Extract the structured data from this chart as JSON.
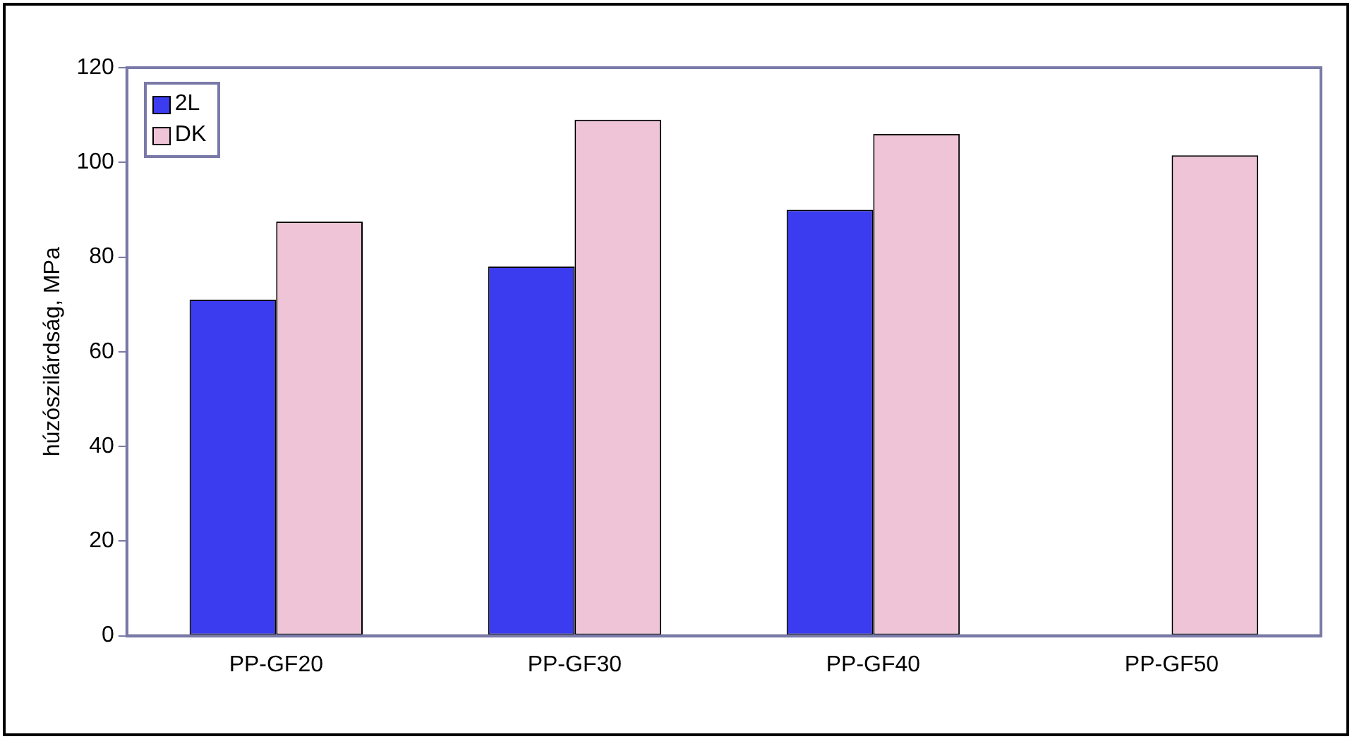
{
  "chart_data": {
    "type": "bar",
    "ylabel": "húzószilárdság, MPa",
    "categories": [
      "PP-GF20",
      "PP-GF30",
      "PP-GF40",
      "PP-GF50"
    ],
    "series": [
      {
        "name": "2L",
        "color": "#3b3bf0",
        "values": [
          71,
          78,
          90,
          null
        ]
      },
      {
        "name": "DK",
        "color": "#eec4d6",
        "values": [
          87.5,
          109,
          106,
          101.5
        ]
      }
    ],
    "ylim": [
      0,
      120
    ],
    "yticks": [
      0,
      20,
      40,
      60,
      80,
      100,
      120
    ],
    "grid": false,
    "legend": "top left"
  }
}
